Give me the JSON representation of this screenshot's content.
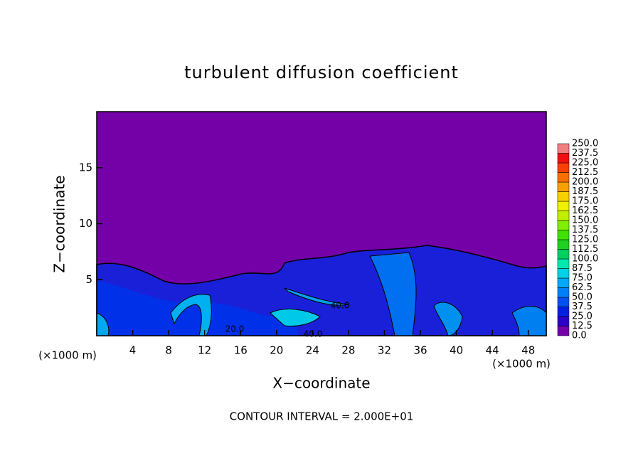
{
  "chart_data": {
    "type": "contour",
    "title": "turbulent diffusion coefficient",
    "x_label": "X−coordinate",
    "y_label": "Z−coordinate",
    "x_unit_label": "(×1000 m)",
    "y_unit_label": "(×1000 m)",
    "xlim": [
      0,
      50
    ],
    "ylim": [
      0,
      20
    ],
    "xticks": [
      4,
      8,
      12,
      16,
      20,
      24,
      28,
      32,
      36,
      40,
      44,
      48
    ],
    "yticks": [
      5,
      10,
      15
    ],
    "contour_interval_label": "CONTOUR INTERVAL = 2.000E+01",
    "contour_labels": [
      "40.0",
      "40.0",
      "20.0"
    ],
    "colorbar": {
      "levels": [
        {
          "value": 0,
          "label": "0.0"
        },
        12.5,
        {
          "value": 25,
          "label": "25.0"
        },
        37.5,
        {
          "value": 50,
          "label": "50.0"
        },
        62.5,
        {
          "value": 75,
          "label": "75.0"
        },
        87.5,
        {
          "value": 100,
          "label": "100.0"
        },
        112.5,
        {
          "value": 125,
          "label": "125.0"
        },
        137.5,
        {
          "value": 150,
          "label": "150.0"
        },
        162.5,
        {
          "value": 175,
          "label": "175.0"
        },
        187.5,
        {
          "value": 200,
          "label": "200.0"
        },
        212.5,
        {
          "value": 225,
          "label": "225.0"
        },
        237.5,
        {
          "value": 250,
          "label": "250.0"
        }
      ],
      "colors": [
        "#7400a8",
        "#2a00c8",
        "#0020e0",
        "#0050f0",
        "#0080f8",
        "#00a8f8",
        "#00d0e8",
        "#00e8b0",
        "#00d060",
        "#20d020",
        "#40e000",
        "#80f000",
        "#c0f000",
        "#f0f000",
        "#f8d000",
        "#f8a000",
        "#f87000",
        "#f84000",
        "#f01010",
        "#f08080"
      ]
    }
  }
}
